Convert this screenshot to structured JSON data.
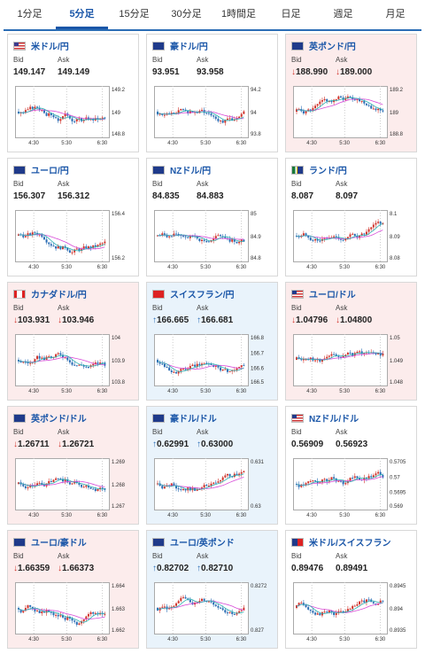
{
  "tabs": [
    {
      "label": "1分足",
      "active": false
    },
    {
      "label": "5分足",
      "active": true
    },
    {
      "label": "15分足",
      "active": false
    },
    {
      "label": "30分足",
      "active": false
    },
    {
      "label": "1時間足",
      "active": false
    },
    {
      "label": "日足",
      "active": false
    },
    {
      "label": "週足",
      "active": false
    },
    {
      "label": "月足",
      "active": false
    }
  ],
  "labels": {
    "bid": "Bid",
    "ask": "Ask"
  },
  "pairs": [
    {
      "name": "米ドル/円",
      "bid": "149.147",
      "ask": "149.149",
      "trend": "none",
      "chart_data": {
        "type": "candlestick",
        "x_ticks": [
          "4:30",
          "5:30",
          "6:30"
        ],
        "y_ticks": [
          "149.2",
          "149",
          "148.8"
        ],
        "ylim": [
          148.8,
          149.2
        ]
      }
    },
    {
      "name": "豪ドル/円",
      "bid": "93.951",
      "ask": "93.958",
      "trend": "none",
      "chart_data": {
        "type": "candlestick",
        "x_ticks": [
          "4:30",
          "5:30",
          "6:30"
        ],
        "y_ticks": [
          "94.2",
          "94",
          "93.8"
        ],
        "ylim": [
          93.8,
          94.2
        ]
      }
    },
    {
      "name": "英ポンド/円",
      "bid": "188.990",
      "ask": "189.000",
      "trend": "down",
      "chart_data": {
        "type": "candlestick",
        "x_ticks": [
          "4:30",
          "5:30",
          "6:30"
        ],
        "y_ticks": [
          "189.2",
          "189",
          "188.8"
        ],
        "ylim": [
          188.8,
          189.2
        ]
      }
    },
    {
      "name": "ユーロ/円",
      "bid": "156.307",
      "ask": "156.312",
      "trend": "none",
      "chart_data": {
        "type": "candlestick",
        "x_ticks": [
          "4:30",
          "5:30",
          "6:30"
        ],
        "y_ticks": [
          "156.4",
          "156.2"
        ],
        "ylim": [
          156.0,
          156.5
        ]
      }
    },
    {
      "name": "NZドル/円",
      "bid": "84.835",
      "ask": "84.883",
      "trend": "none",
      "chart_data": {
        "type": "candlestick",
        "x_ticks": [
          "4:30",
          "5:30",
          "6:30"
        ],
        "y_ticks": [
          "85",
          "84.9",
          "84.8"
        ],
        "ylim": [
          84.75,
          85.05
        ]
      }
    },
    {
      "name": "ランド/円",
      "bid": "8.087",
      "ask": "8.097",
      "trend": "none",
      "chart_data": {
        "type": "candlestick",
        "x_ticks": [
          "4:30",
          "5:30",
          "6:30"
        ],
        "y_ticks": [
          "8.1",
          "8.09",
          "8.08"
        ],
        "ylim": [
          8.075,
          8.105
        ]
      }
    },
    {
      "name": "カナダドル/円",
      "bid": "103.931",
      "ask": "103.946",
      "trend": "down",
      "chart_data": {
        "type": "candlestick",
        "x_ticks": [
          "4:30",
          "5:30",
          "6:30"
        ],
        "y_ticks": [
          "104",
          "103.9",
          "103.8"
        ],
        "ylim": [
          103.75,
          104.05
        ]
      }
    },
    {
      "name": "スイスフラン/円",
      "bid": "166.665",
      "ask": "166.681",
      "trend": "up",
      "chart_data": {
        "type": "candlestick",
        "x_ticks": [
          "4:30",
          "5:30",
          "6:30"
        ],
        "y_ticks": [
          "166.8",
          "166.7",
          "166.6",
          "166.5"
        ],
        "ylim": [
          166.45,
          166.85
        ]
      }
    },
    {
      "name": "ユーロ/ドル",
      "bid": "1.04796",
      "ask": "1.04800",
      "trend": "down",
      "chart_data": {
        "type": "candlestick",
        "x_ticks": [
          "4:30",
          "5:30",
          "6:30"
        ],
        "y_ticks": [
          "1.05",
          "1.049",
          "1.048"
        ],
        "ylim": [
          1.0475,
          1.0505
        ]
      }
    },
    {
      "name": "英ポンド/ドル",
      "bid": "1.26711",
      "ask": "1.26721",
      "trend": "down",
      "chart_data": {
        "type": "candlestick",
        "x_ticks": [
          "4:30",
          "5:30",
          "6:30"
        ],
        "y_ticks": [
          "1.269",
          "1.268",
          "1.267"
        ],
        "ylim": [
          1.2665,
          1.2695
        ]
      }
    },
    {
      "name": "豪ドル/ドル",
      "bid": "0.62991",
      "ask": "0.63000",
      "trend": "up",
      "chart_data": {
        "type": "candlestick",
        "x_ticks": [
          "4:30",
          "5:30",
          "6:30"
        ],
        "y_ticks": [
          "0.631",
          "0.63"
        ],
        "ylim": [
          0.6295,
          0.6315
        ]
      }
    },
    {
      "name": "NZドル/ドル",
      "bid": "0.56909",
      "ask": "0.56923",
      "trend": "none",
      "chart_data": {
        "type": "candlestick",
        "x_ticks": [
          "4:30",
          "5:30",
          "6:30"
        ],
        "y_ticks": [
          "0.5705",
          "0.57",
          "0.5695",
          "0.569"
        ],
        "ylim": [
          0.5688,
          0.5708
        ]
      }
    },
    {
      "name": "ユーロ/豪ドル",
      "bid": "1.66359",
      "ask": "1.66373",
      "trend": "down",
      "chart_data": {
        "type": "candlestick",
        "x_ticks": [
          "4:30",
          "5:30",
          "6:30"
        ],
        "y_ticks": [
          "1.664",
          "1.663",
          "1.662"
        ],
        "ylim": [
          1.6615,
          1.6645
        ]
      }
    },
    {
      "name": "ユーロ/英ポンド",
      "bid": "0.82702",
      "ask": "0.82710",
      "trend": "up",
      "chart_data": {
        "type": "candlestick",
        "x_ticks": [
          "4:30",
          "5:30",
          "6:30"
        ],
        "y_ticks": [
          "0.8272",
          "0.827"
        ],
        "ylim": [
          0.8268,
          0.8274
        ]
      }
    },
    {
      "name": "米ドル/スイスフラン",
      "bid": "0.89476",
      "ask": "0.89491",
      "trend": "none",
      "chart_data": {
        "type": "candlestick",
        "x_ticks": [
          "4:30",
          "5:30",
          "6:30"
        ],
        "y_ticks": [
          "0.8945",
          "0.894",
          "0.8935"
        ],
        "ylim": [
          0.8932,
          0.8948
        ]
      }
    }
  ],
  "arrows": {
    "up": "↑",
    "down": "↓"
  },
  "colors": {
    "accent": "#1a56a8",
    "up_bg": "#e9f3fb",
    "down_bg": "#fcecec",
    "bull": "#d0342c",
    "bear": "#2a6db5",
    "ma_long": "#d84bd8",
    "ma_short": "#2bb0b0"
  }
}
